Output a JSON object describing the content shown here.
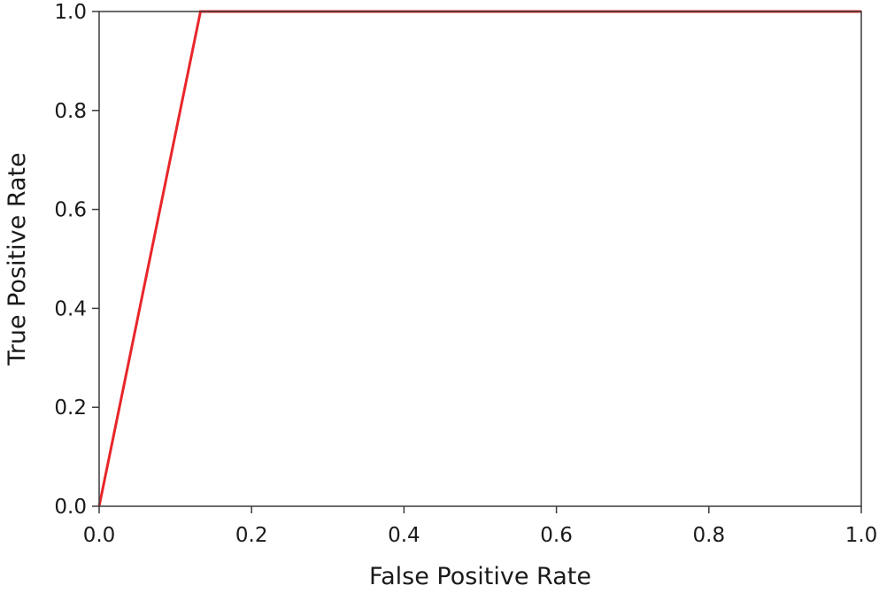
{
  "chart_data": {
    "type": "line",
    "title": "",
    "xlabel": "False Positive Rate",
    "ylabel": "True Positive Rate",
    "xlim": [
      0.0,
      1.0
    ],
    "ylim": [
      0.0,
      1.0
    ],
    "xticks": [
      "0.0",
      "0.2",
      "0.4",
      "0.6",
      "0.8",
      "1.0"
    ],
    "yticks": [
      "0.0",
      "0.2",
      "0.4",
      "0.6",
      "0.8",
      "1.0"
    ],
    "grid": false,
    "legend": "none",
    "series": [
      {
        "color": "#e8262a",
        "x": [
          0.0,
          0.133,
          1.0
        ],
        "y": [
          0.0,
          1.0,
          1.0
        ]
      }
    ]
  }
}
